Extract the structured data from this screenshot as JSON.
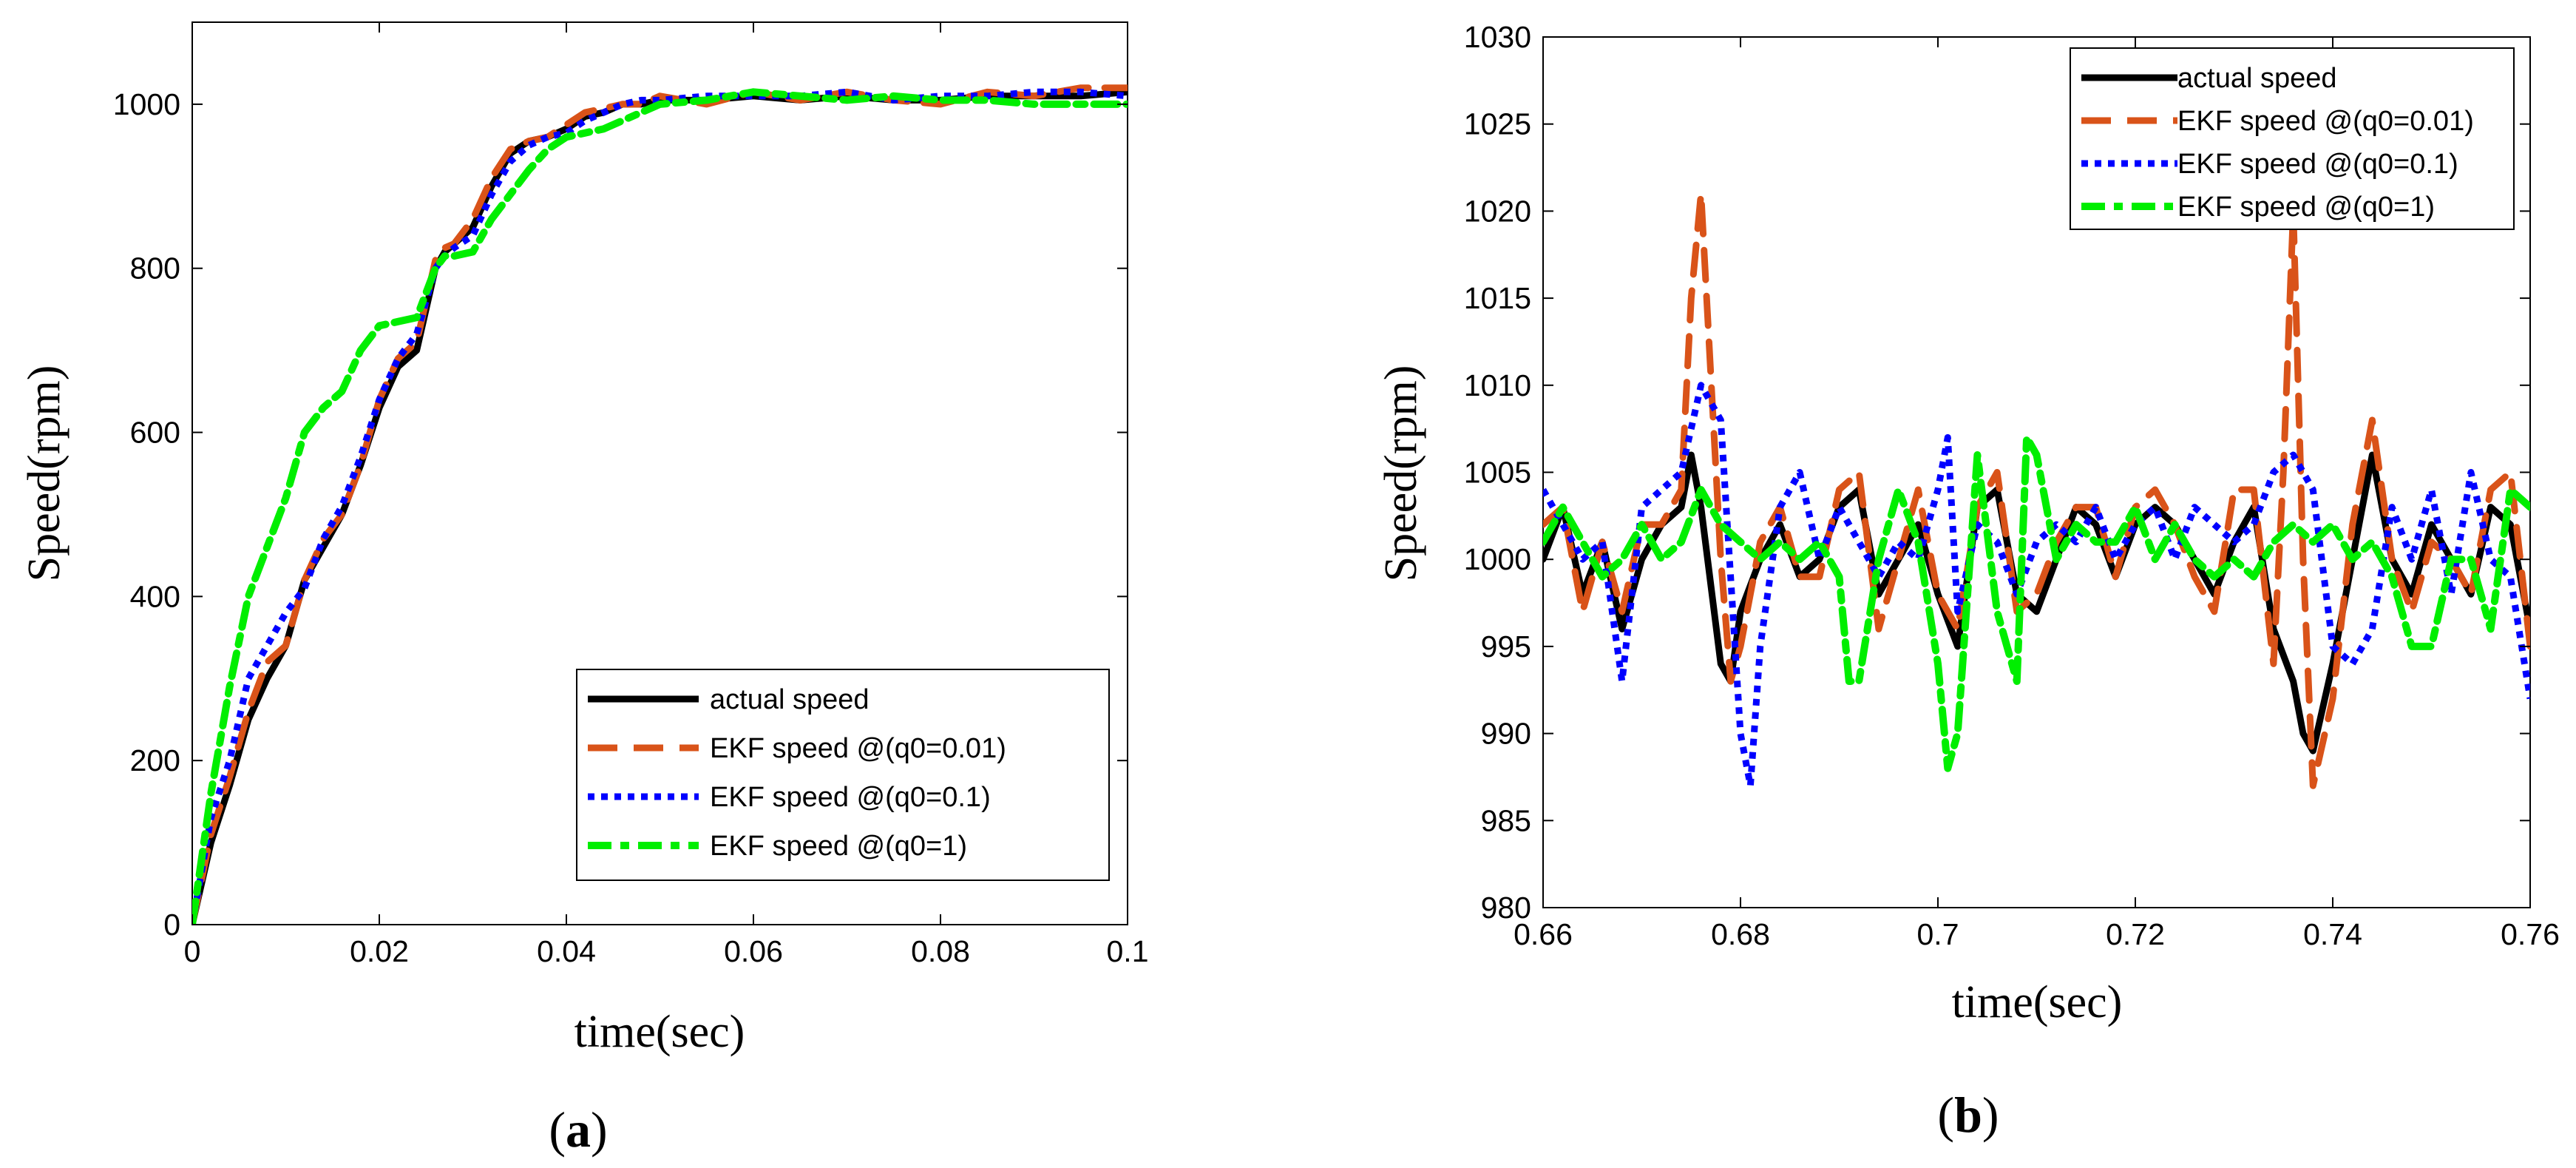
{
  "chart_data": [
    {
      "type": "line",
      "panel_label": {
        "open": "(",
        "letter": "a",
        "close": ")"
      },
      "xlabel": "time(sec)",
      "ylabel": "Speed(rpm)",
      "xlim": [
        0,
        0.1
      ],
      "ylim": [
        0,
        1100
      ],
      "xticks": [
        0,
        0.02,
        0.04,
        0.06,
        0.08,
        0.1
      ],
      "xtick_labels": [
        "0",
        "0.02",
        "0.04",
        "0.06",
        "0.08",
        "0.1"
      ],
      "yticks": [
        0,
        200,
        400,
        600,
        800,
        1000
      ],
      "ytick_labels": [
        "0",
        "200",
        "400",
        "600",
        "800",
        "1000"
      ],
      "grid": false,
      "legend_position": "bottom-right",
      "series": [
        {
          "name": "actual speed",
          "color": "#000000",
          "style": "solid",
          "x": [
            0,
            0.002,
            0.004,
            0.006,
            0.008,
            0.01,
            0.012,
            0.014,
            0.016,
            0.018,
            0.02,
            0.022,
            0.024,
            0.026,
            0.027,
            0.028,
            0.03,
            0.032,
            0.034,
            0.036,
            0.038,
            0.04,
            0.042,
            0.044,
            0.046,
            0.048,
            0.05,
            0.055,
            0.06,
            0.065,
            0.07,
            0.075,
            0.08,
            0.085,
            0.09,
            0.095,
            0.1
          ],
          "y": [
            0,
            100,
            170,
            250,
            300,
            340,
            420,
            460,
            500,
            560,
            630,
            680,
            700,
            800,
            820,
            830,
            850,
            900,
            940,
            955,
            960,
            970,
            985,
            990,
            1000,
            1000,
            1005,
            1005,
            1010,
            1005,
            1010,
            1005,
            1005,
            1010,
            1010,
            1010,
            1015
          ]
        },
        {
          "name": "EKF speed @(q0=0.01)",
          "color": "#D95319",
          "style": "dashed",
          "x": [
            0,
            0.002,
            0.004,
            0.006,
            0.008,
            0.01,
            0.012,
            0.014,
            0.016,
            0.018,
            0.02,
            0.022,
            0.024,
            0.026,
            0.027,
            0.028,
            0.03,
            0.032,
            0.034,
            0.036,
            0.038,
            0.04,
            0.042,
            0.044,
            0.046,
            0.048,
            0.05,
            0.055,
            0.06,
            0.065,
            0.07,
            0.075,
            0.08,
            0.085,
            0.09,
            0.095,
            0.1
          ],
          "y": [
            0,
            110,
            180,
            260,
            320,
            340,
            420,
            470,
            500,
            560,
            640,
            690,
            710,
            810,
            825,
            830,
            860,
            910,
            945,
            955,
            960,
            975,
            990,
            995,
            1000,
            1000,
            1010,
            1000,
            1015,
            1005,
            1015,
            1005,
            1000,
            1015,
            1010,
            1020,
            1020
          ]
        },
        {
          "name": "EKF speed @(q0=0.1)",
          "color": "#0000FF",
          "style": "dotted",
          "x": [
            0,
            0.002,
            0.004,
            0.006,
            0.008,
            0.01,
            0.012,
            0.014,
            0.016,
            0.018,
            0.02,
            0.022,
            0.024,
            0.026,
            0.027,
            0.028,
            0.03,
            0.032,
            0.034,
            0.036,
            0.038,
            0.04,
            0.042,
            0.044,
            0.046,
            0.048,
            0.05,
            0.055,
            0.06,
            0.065,
            0.07,
            0.075,
            0.08,
            0.085,
            0.09,
            0.095,
            0.1
          ],
          "y": [
            0,
            130,
            200,
            300,
            340,
            380,
            410,
            470,
            510,
            570,
            640,
            690,
            720,
            800,
            815,
            825,
            840,
            890,
            930,
            950,
            960,
            965,
            980,
            990,
            1000,
            1005,
            1005,
            1010,
            1010,
            1010,
            1015,
            1005,
            1010,
            1010,
            1015,
            1015,
            1010
          ]
        },
        {
          "name": "EKF speed @(q0=1)",
          "color": "#00EE00",
          "style": "dash-dot",
          "x": [
            0,
            0.002,
            0.004,
            0.006,
            0.008,
            0.01,
            0.012,
            0.014,
            0.016,
            0.018,
            0.02,
            0.022,
            0.024,
            0.026,
            0.027,
            0.028,
            0.03,
            0.032,
            0.034,
            0.036,
            0.038,
            0.04,
            0.042,
            0.044,
            0.046,
            0.048,
            0.05,
            0.055,
            0.06,
            0.065,
            0.07,
            0.075,
            0.08,
            0.085,
            0.09,
            0.095,
            0.1
          ],
          "y": [
            0,
            160,
            290,
            400,
            460,
            520,
            600,
            630,
            650,
            700,
            730,
            735,
            740,
            800,
            815,
            815,
            820,
            860,
            890,
            920,
            945,
            960,
            965,
            970,
            980,
            990,
            1000,
            1005,
            1015,
            1010,
            1005,
            1010,
            1005,
            1005,
            1000,
            1000,
            1000
          ]
        }
      ]
    },
    {
      "type": "line",
      "panel_label": {
        "open": "(",
        "letter": "b",
        "close": ")"
      },
      "xlabel": "time(sec)",
      "ylabel": "Speed(rpm)",
      "xlim": [
        0.66,
        0.76
      ],
      "ylim": [
        980,
        1030
      ],
      "xticks": [
        0.66,
        0.68,
        0.7,
        0.72,
        0.74,
        0.76
      ],
      "xtick_labels": [
        "0.66",
        "0.68",
        "0.7",
        "0.72",
        "0.74",
        "0.76"
      ],
      "yticks": [
        980,
        985,
        990,
        995,
        1000,
        1005,
        1010,
        1015,
        1020,
        1025,
        1030
      ],
      "ytick_labels": [
        "980",
        "985",
        "990",
        "995",
        "1000",
        "1005",
        "1010",
        "1015",
        "1020",
        "1025",
        "1030"
      ],
      "grid": false,
      "legend_position": "top-right",
      "series": [
        {
          "name": "actual speed",
          "color": "#000000",
          "style": "solid",
          "x": [
            0.66,
            0.662,
            0.664,
            0.666,
            0.668,
            0.67,
            0.672,
            0.674,
            0.675,
            0.676,
            0.678,
            0.679,
            0.68,
            0.682,
            0.684,
            0.686,
            0.688,
            0.69,
            0.692,
            0.694,
            0.696,
            0.698,
            0.7,
            0.702,
            0.704,
            0.706,
            0.708,
            0.71,
            0.712,
            0.714,
            0.716,
            0.718,
            0.72,
            0.722,
            0.724,
            0.726,
            0.728,
            0.73,
            0.732,
            0.734,
            0.736,
            0.737,
            0.738,
            0.74,
            0.742,
            0.744,
            0.746,
            0.748,
            0.75,
            0.752,
            0.754,
            0.756,
            0.758,
            0.76
          ],
          "y": [
            1000,
            1003,
            998,
            1001,
            996,
            1000,
            1002,
            1003,
            1006,
            1003,
            994,
            993,
            997,
            1000,
            1002,
            999,
            1000,
            1003,
            1004,
            998,
            1000,
            1002,
            998,
            995,
            1003,
            1004,
            998,
            997,
            1000,
            1003,
            1002,
            999,
            1002,
            1003,
            1002,
            1000,
            998,
            1001,
            1003,
            996,
            993,
            990,
            989,
            994,
            1000,
            1006,
            1000,
            998,
            1002,
            1000,
            998,
            1003,
            1002,
            996
          ]
        },
        {
          "name": "EKF speed @(q0=0.01)",
          "color": "#D95319",
          "style": "dashed",
          "x": [
            0.66,
            0.662,
            0.664,
            0.666,
            0.668,
            0.67,
            0.672,
            0.674,
            0.675,
            0.676,
            0.678,
            0.679,
            0.68,
            0.682,
            0.684,
            0.686,
            0.688,
            0.69,
            0.692,
            0.694,
            0.696,
            0.698,
            0.7,
            0.702,
            0.704,
            0.706,
            0.708,
            0.71,
            0.712,
            0.714,
            0.716,
            0.718,
            0.72,
            0.722,
            0.724,
            0.726,
            0.728,
            0.73,
            0.732,
            0.734,
            0.735,
            0.736,
            0.737,
            0.738,
            0.74,
            0.742,
            0.744,
            0.746,
            0.748,
            0.75,
            0.752,
            0.754,
            0.756,
            0.758,
            0.76
          ],
          "y": [
            1002,
            1003,
            997,
            1001,
            997,
            1002,
            1002,
            1004,
            1015,
            1021,
            1000,
            993,
            995,
            1001,
            1003,
            999,
            999,
            1004,
            1005,
            996,
            1000,
            1004,
            998,
            996,
            1003,
            1005,
            997,
            998,
            1001,
            1003,
            1003,
            999,
            1003,
            1004,
            1002,
            999,
            997,
            1004,
            1004,
            994,
            1005,
            1020,
            1000,
            987,
            992,
            1002,
            1008,
            1000,
            997,
            1001,
            1000,
            998,
            1004,
            1005,
            995
          ]
        },
        {
          "name": "EKF speed @(q0=0.1)",
          "color": "#0000FF",
          "style": "dotted",
          "x": [
            0.66,
            0.662,
            0.664,
            0.666,
            0.668,
            0.67,
            0.672,
            0.674,
            0.676,
            0.678,
            0.68,
            0.681,
            0.682,
            0.684,
            0.686,
            0.688,
            0.69,
            0.692,
            0.694,
            0.696,
            0.698,
            0.7,
            0.701,
            0.702,
            0.704,
            0.706,
            0.708,
            0.71,
            0.712,
            0.714,
            0.716,
            0.718,
            0.72,
            0.722,
            0.724,
            0.726,
            0.728,
            0.73,
            0.732,
            0.734,
            0.736,
            0.738,
            0.74,
            0.742,
            0.744,
            0.746,
            0.748,
            0.75,
            0.752,
            0.754,
            0.756,
            0.758,
            0.76
          ],
          "y": [
            1004,
            1002,
            1000,
            1001,
            993,
            1003,
            1004,
            1005,
            1010,
            1008,
            990,
            987,
            995,
            1003,
            1005,
            1000,
            1003,
            1001,
            999,
            1001,
            1000,
            1004,
            1007,
            997,
            1002,
            1001,
            998,
            1001,
            1002,
            1001,
            1003,
            1000,
            1002,
            1003,
            1000,
            1003,
            1002,
            1001,
            1002,
            1005,
            1006,
            1004,
            995,
            994,
            996,
            1003,
            1000,
            1004,
            998,
            1005,
            1000,
            999,
            992
          ]
        },
        {
          "name": "EKF speed @(q0=1)",
          "color": "#00EE00",
          "style": "dash-dot",
          "x": [
            0.66,
            0.662,
            0.664,
            0.666,
            0.668,
            0.67,
            0.672,
            0.674,
            0.676,
            0.678,
            0.68,
            0.682,
            0.684,
            0.686,
            0.688,
            0.69,
            0.691,
            0.692,
            0.694,
            0.696,
            0.698,
            0.7,
            0.701,
            0.702,
            0.704,
            0.706,
            0.708,
            0.709,
            0.71,
            0.712,
            0.714,
            0.716,
            0.718,
            0.72,
            0.722,
            0.724,
            0.726,
            0.728,
            0.73,
            0.732,
            0.734,
            0.736,
            0.738,
            0.74,
            0.742,
            0.744,
            0.746,
            0.748,
            0.75,
            0.752,
            0.754,
            0.756,
            0.758,
            0.76
          ],
          "y": [
            1001,
            1003,
            1001,
            999,
            1000,
            1002,
            1000,
            1001,
            1004,
            1002,
            1001,
            1000,
            1001,
            1000,
            1001,
            999,
            993,
            993,
            1000,
            1004,
            1001,
            994,
            988,
            990,
            1006,
            997,
            993,
            1007,
            1006,
            1000,
            1002,
            1001,
            1001,
            1003,
            1000,
            1002,
            1000,
            999,
            1000,
            999,
            1001,
            1002,
            1001,
            1002,
            1000,
            1001,
            999,
            995,
            995,
            1000,
            1000,
            996,
            1004,
            1003
          ]
        }
      ]
    }
  ]
}
